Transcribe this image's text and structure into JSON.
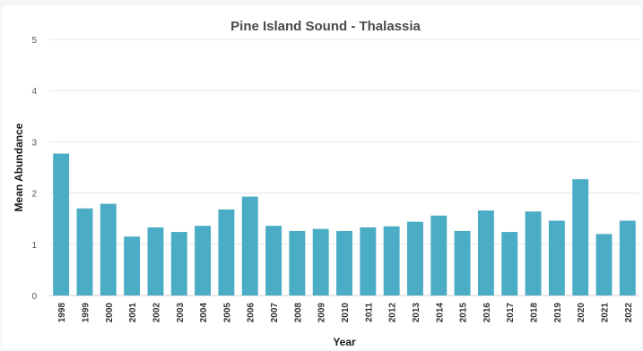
{
  "chart_data": {
    "type": "bar",
    "title": "Pine Island Sound - Thalassia",
    "xlabel": "Year",
    "ylabel": "Mean Abundance",
    "ylim": [
      0,
      5
    ],
    "yticks": [
      "0",
      "1",
      "2",
      "3",
      "4",
      "5"
    ],
    "grid": true,
    "legend": "none",
    "bar_color": "#4bacc6",
    "categories": [
      "1998",
      "1999",
      "2000",
      "2001",
      "2002",
      "2003",
      "2004",
      "2005",
      "2006",
      "2007",
      "2008",
      "2009",
      "2010",
      "2011",
      "2012",
      "2013",
      "2014",
      "2015",
      "2016",
      "2017",
      "2018",
      "2019",
      "2020",
      "2021",
      "2022"
    ],
    "values": [
      2.77,
      1.7,
      1.79,
      1.15,
      1.33,
      1.24,
      1.36,
      1.68,
      1.93,
      1.36,
      1.26,
      1.3,
      1.26,
      1.33,
      1.35,
      1.44,
      1.56,
      1.26,
      1.66,
      1.24,
      1.64,
      1.46,
      2.27,
      1.2,
      1.46
    ]
  }
}
